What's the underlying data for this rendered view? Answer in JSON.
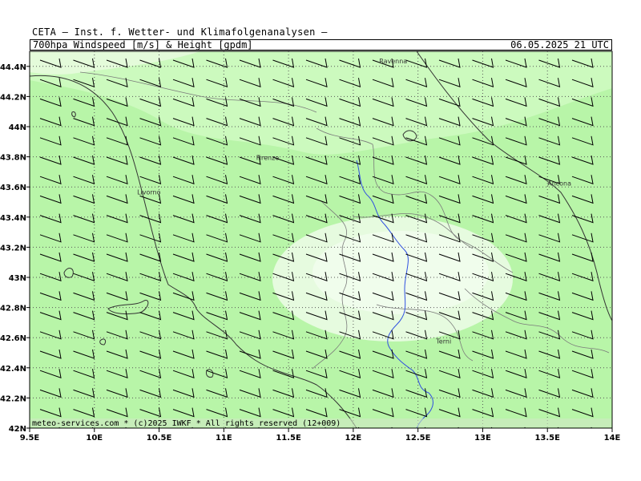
{
  "header": {
    "institute": "CETA – Inst. f. Wetter- und Klimafolgenanalysen –",
    "parameter": "700hpa_Windspeed_[m/s]_&_Height_[gpdm]",
    "datetime": "06.05.2025 21 UTC"
  },
  "footer": {
    "credit": "meteo-services.com * (c)2025 IWKF * All rights reserved (12+009)"
  },
  "axes": {
    "lon_labels": [
      "9.5E",
      "10E",
      "10.5E",
      "11E",
      "11.5E",
      "12E",
      "12.5E",
      "13E",
      "13.5E",
      "14E"
    ],
    "lat_labels": [
      "42N",
      "42.2N",
      "42.4N",
      "42.6N",
      "42.8N",
      "43N",
      "43.2N",
      "43.4N",
      "43.6N",
      "43.8N",
      "44N",
      "44.2N",
      "44.4N"
    ]
  },
  "cities": [
    {
      "name": "Ravenna",
      "lon": 12.2,
      "lat": 44.42
    },
    {
      "name": "Firenze",
      "lon": 11.25,
      "lat": 43.78
    },
    {
      "name": "Livorno",
      "lon": 10.33,
      "lat": 43.55
    },
    {
      "name": "Ancona",
      "lon": 13.5,
      "lat": 43.61
    },
    {
      "name": "Terni",
      "lon": 12.64,
      "lat": 42.56
    }
  ],
  "colors": {
    "field_base": "#b8f5a8",
    "field_light": "#ccfabe",
    "field_lighter": "#e4fbda",
    "field_lightest": "#f0fdec",
    "coast": "#333333",
    "border": "#7a7a7a",
    "river": "#3050e0",
    "grid": "#555555"
  },
  "wind": {
    "direction_from_deg": 250,
    "icon": "wind-barb-icon"
  }
}
